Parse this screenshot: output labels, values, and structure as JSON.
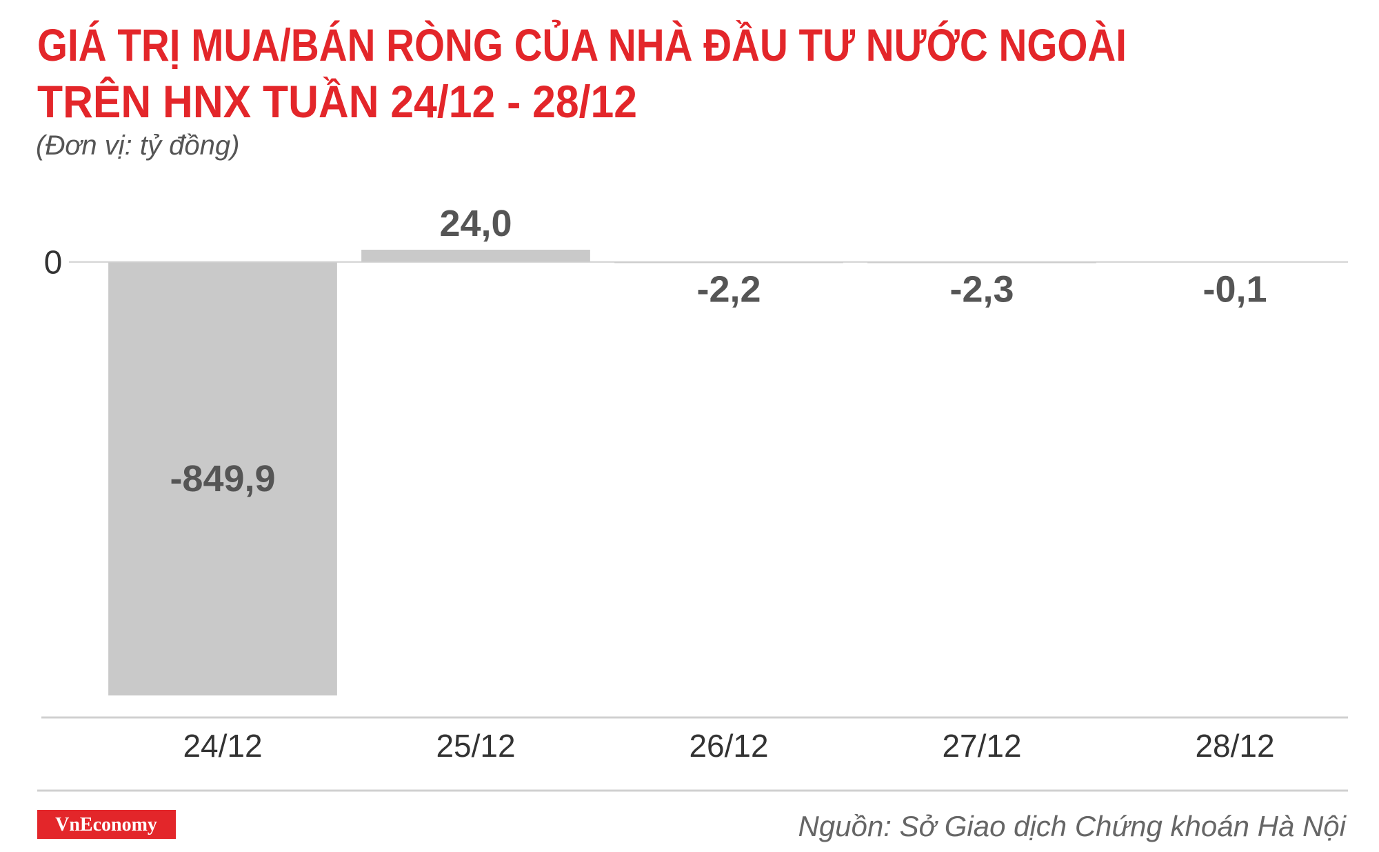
{
  "chart_data": {
    "type": "bar",
    "title": [
      "GIÁ TRỊ MUA/BÁN RÒNG CỦA NHÀ ĐẦU TƯ NƯỚC NGOÀI",
      "TRÊN HNX TUẦN 24/12 - 28/12"
    ],
    "subtitle": "(Đơn vị: tỷ đồng)",
    "categories": [
      "24/12",
      "25/12",
      "26/12",
      "27/12",
      "28/12"
    ],
    "values": [
      -849.9,
      24.0,
      -2.2,
      -2.3,
      -0.1
    ],
    "value_labels": [
      "-849,9",
      "24,0",
      "-2,2",
      "-2,3",
      "-0,1"
    ],
    "color": "#c9c9c9",
    "ylim": [
      -893,
      120
    ],
    "yticks": [
      0
    ],
    "grid": true,
    "source": "Nguồn: Sở Giao dịch Chứng khoán Hà Nội",
    "logo": "VnEconomy"
  }
}
